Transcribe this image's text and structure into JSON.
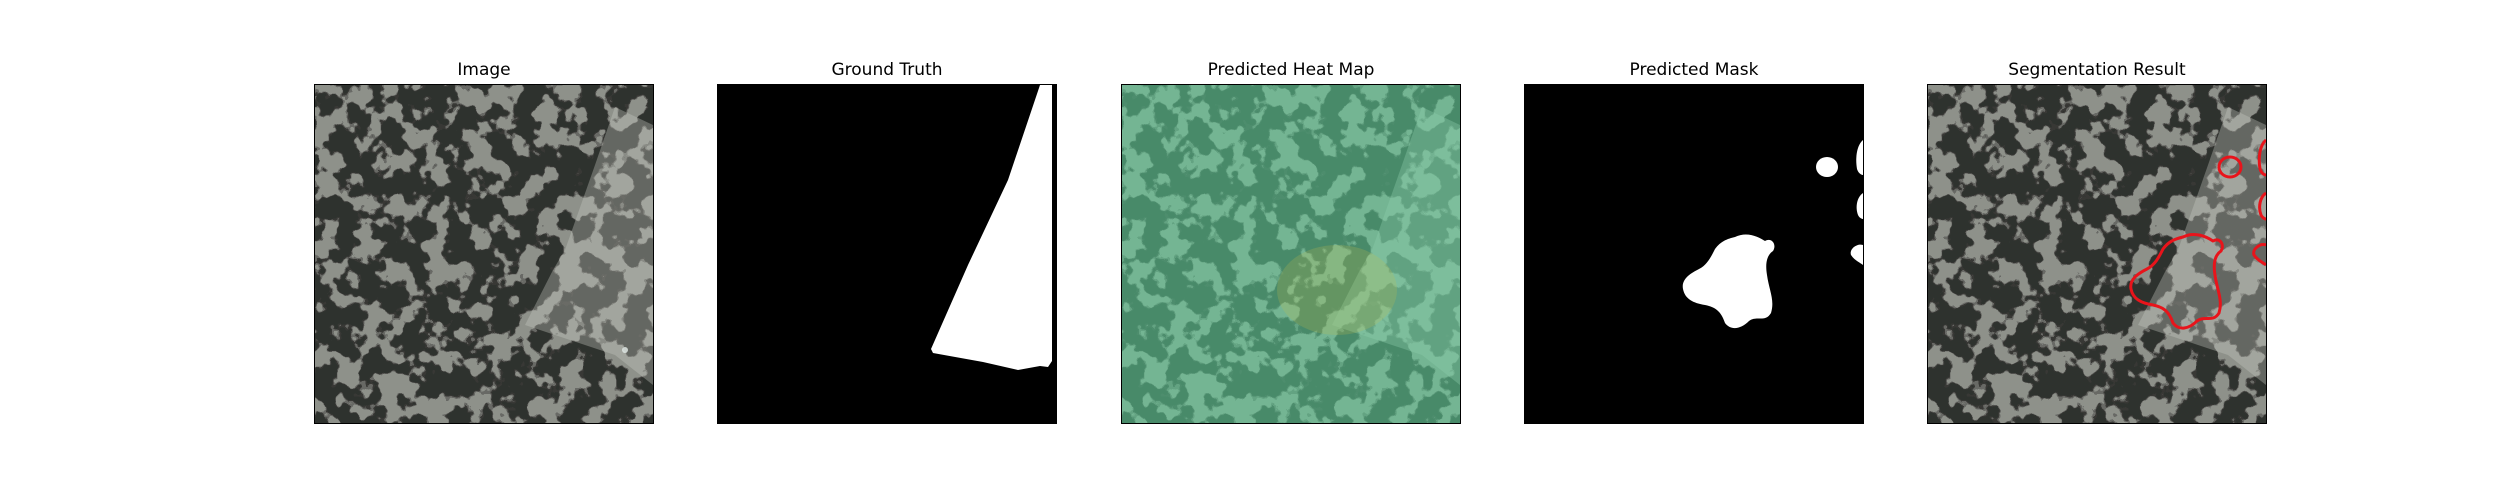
{
  "figure": {
    "panels": [
      {
        "id": "image",
        "title": "Image"
      },
      {
        "id": "ground-truth",
        "title": "Ground Truth"
      },
      {
        "id": "heat-map",
        "title": "Predicted Heat Map"
      },
      {
        "id": "mask",
        "title": "Predicted Mask"
      },
      {
        "id": "segmentation",
        "title": "Segmentation Result"
      }
    ],
    "colors": {
      "background": "#ffffff",
      "mask_foreground": "#ffffff",
      "mask_background": "#000000",
      "contour": "#e8141b",
      "heat_overlay": "#5fd39a"
    }
  }
}
